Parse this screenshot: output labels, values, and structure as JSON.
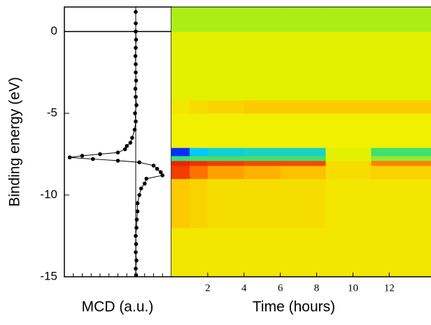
{
  "chart_data": [
    {
      "type": "line",
      "x_label": "MCD (a.u.)",
      "y_label": "Binding energy (eV)",
      "xlim": [
        -2,
        1
      ],
      "ylim": [
        -15,
        1.5
      ],
      "yticks": [
        -15,
        -10,
        -5,
        0
      ],
      "color": "#000000",
      "x": [
        0,
        0,
        0,
        0.01,
        0,
        -0.01,
        0,
        0,
        0.01,
        -0.01,
        0,
        0.02,
        -0.02,
        0,
        -0.03,
        -0.1,
        -0.15,
        -0.25,
        -0.3,
        -0.5,
        -1.0,
        -1.5,
        -1.85,
        -1.2,
        -0.5,
        0.1,
        0.5,
        0.6,
        0.7,
        0.75,
        0.3,
        0.25,
        0.15,
        0.1,
        0.05,
        0.05,
        0.03,
        0.02,
        0,
        0.01,
        0,
        0.02,
        0,
        0.01
      ],
      "values": [
        1.2,
        0.5,
        0,
        -0.5,
        -1,
        -1.5,
        -2,
        -2.5,
        -3,
        -3.5,
        -4,
        -4.5,
        -5,
        -5.5,
        -6,
        -6.5,
        -6.8,
        -7.0,
        -7.2,
        -7.4,
        -7.5,
        -7.6,
        -7.7,
        -7.8,
        -7.9,
        -8.0,
        -8.2,
        -8.4,
        -8.6,
        -8.8,
        -9.0,
        -9.3,
        -9.6,
        -10,
        -10.5,
        -11,
        -11.5,
        -12,
        -12.5,
        -13,
        -13.5,
        -14,
        -14.5,
        -14.9
      ]
    },
    {
      "type": "heatmap",
      "x_label": "Time (hours)",
      "xlim": [
        0,
        14.3
      ],
      "ylim": [
        -15,
        1.5
      ],
      "xticks": [
        2,
        4,
        6,
        8,
        10,
        12
      ],
      "x_bins": [
        0,
        1,
        2,
        4,
        6,
        8.5,
        11,
        14.3
      ],
      "y_bins": [
        -15,
        -12,
        -9,
        -8.2,
        -7.9,
        -7.6,
        -7.1,
        -5,
        -4.2,
        0,
        1.5
      ],
      "colorscale": [
        [
          -1,
          "#0010ff"
        ],
        [
          -0.7,
          "#00c8ff"
        ],
        [
          -0.35,
          "#40e070"
        ],
        [
          -0.1,
          "#c8f000"
        ],
        [
          0.05,
          "#f0f000"
        ],
        [
          0.3,
          "#ffc000"
        ],
        [
          0.6,
          "#ff6000"
        ],
        [
          1,
          "#e00000"
        ]
      ],
      "z": [
        [
          0.1,
          0.1,
          0.1,
          0.1,
          0.1,
          0.1,
          0.1
        ],
        [
          0.25,
          0.2,
          0.15,
          0.15,
          0.15,
          0.1,
          0.1
        ],
        [
          0.75,
          0.55,
          0.4,
          0.35,
          0.3,
          0.15,
          0.2
        ],
        [
          0.85,
          0.8,
          0.75,
          0.7,
          0.7,
          0.15,
          0.5
        ],
        [
          -0.4,
          -0.35,
          -0.35,
          -0.35,
          -0.35,
          0,
          -0.2
        ],
        [
          -0.95,
          -0.7,
          -0.6,
          -0.55,
          -0.55,
          0,
          -0.35
        ],
        [
          0.05,
          0.05,
          0.05,
          0.05,
          0.05,
          0.05,
          0.05
        ],
        [
          0.1,
          0.15,
          0.2,
          0.25,
          0.25,
          0.25,
          0.25
        ],
        [
          0,
          0,
          0,
          0,
          0,
          0,
          0
        ],
        [
          -0.15,
          -0.15,
          -0.15,
          -0.15,
          -0.15,
          -0.15,
          -0.15
        ]
      ]
    }
  ]
}
